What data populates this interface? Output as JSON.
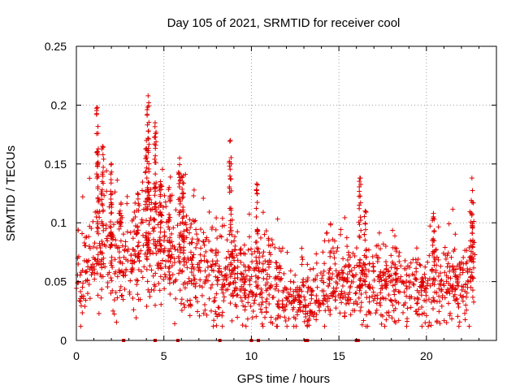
{
  "chart_data": {
    "type": "scatter",
    "title": "Day 105 of 2021, SRMTID for receiver cool",
    "xlabel": "GPS time / hours",
    "ylabel": "SRMTID / TECUs",
    "xlim": [
      0,
      24
    ],
    "ylim": [
      0,
      0.25
    ],
    "x_ticks": [
      0,
      5,
      10,
      15,
      20
    ],
    "x_tick_labels": [
      "0",
      "5",
      "10",
      "15",
      "20"
    ],
    "y_ticks": [
      0,
      0.05,
      0.1,
      0.15,
      0.2,
      0.25
    ],
    "y_tick_labels": [
      "0",
      "0.05",
      "0.1",
      "0.15",
      "0.2",
      "0.25"
    ],
    "grid": true,
    "marker": "plus",
    "color": "#e00000",
    "series": [
      {
        "name": "SRMTID",
        "trend": [
          [
            0.0,
            0.062
          ],
          [
            0.5,
            0.055
          ],
          [
            1.0,
            0.07
          ],
          [
            1.3,
            0.075
          ],
          [
            1.8,
            0.075
          ],
          [
            2.3,
            0.068
          ],
          [
            2.8,
            0.06
          ],
          [
            3.3,
            0.07
          ],
          [
            3.8,
            0.075
          ],
          [
            4.3,
            0.08
          ],
          [
            4.8,
            0.085
          ],
          [
            5.3,
            0.07
          ],
          [
            5.8,
            0.065
          ],
          [
            6.3,
            0.065
          ],
          [
            6.8,
            0.06
          ],
          [
            7.3,
            0.062
          ],
          [
            7.8,
            0.058
          ],
          [
            8.3,
            0.055
          ],
          [
            8.8,
            0.06
          ],
          [
            9.3,
            0.05
          ],
          [
            9.8,
            0.048
          ],
          [
            10.3,
            0.05
          ],
          [
            10.8,
            0.055
          ],
          [
            11.3,
            0.05
          ],
          [
            11.8,
            0.04
          ],
          [
            12.3,
            0.035
          ],
          [
            12.8,
            0.032
          ],
          [
            13.3,
            0.035
          ],
          [
            13.8,
            0.04
          ],
          [
            14.3,
            0.045
          ],
          [
            14.8,
            0.048
          ],
          [
            15.3,
            0.05
          ],
          [
            15.8,
            0.045
          ],
          [
            16.3,
            0.05
          ],
          [
            16.8,
            0.048
          ],
          [
            17.3,
            0.05
          ],
          [
            17.8,
            0.05
          ],
          [
            18.3,
            0.048
          ],
          [
            18.8,
            0.045
          ],
          [
            19.3,
            0.042
          ],
          [
            19.8,
            0.04
          ],
          [
            20.3,
            0.05
          ],
          [
            20.8,
            0.05
          ],
          [
            21.3,
            0.048
          ],
          [
            21.8,
            0.045
          ],
          [
            22.3,
            0.05
          ],
          [
            22.8,
            0.07
          ]
        ],
        "spikes": [
          {
            "x": 1.2,
            "min": 0.05,
            "max": 0.198
          },
          {
            "x": 1.5,
            "min": 0.06,
            "max": 0.165
          },
          {
            "x": 2.0,
            "min": 0.06,
            "max": 0.15
          },
          {
            "x": 2.5,
            "min": 0.05,
            "max": 0.11
          },
          {
            "x": 3.5,
            "min": 0.06,
            "max": 0.125
          },
          {
            "x": 4.0,
            "min": 0.06,
            "max": 0.17
          },
          {
            "x": 4.1,
            "min": 0.07,
            "max": 0.208
          },
          {
            "x": 4.5,
            "min": 0.07,
            "max": 0.185
          },
          {
            "x": 4.8,
            "min": 0.06,
            "max": 0.135
          },
          {
            "x": 5.3,
            "min": 0.05,
            "max": 0.13
          },
          {
            "x": 5.9,
            "min": 0.05,
            "max": 0.155
          },
          {
            "x": 6.1,
            "min": 0.05,
            "max": 0.14
          },
          {
            "x": 8.8,
            "min": 0.05,
            "max": 0.17
          },
          {
            "x": 10.3,
            "min": 0.04,
            "max": 0.133
          },
          {
            "x": 16.2,
            "min": 0.04,
            "max": 0.138
          },
          {
            "x": 16.5,
            "min": 0.04,
            "max": 0.11
          },
          {
            "x": 20.4,
            "min": 0.04,
            "max": 0.108
          },
          {
            "x": 22.6,
            "min": 0.05,
            "max": 0.138
          }
        ],
        "gaps_at_zero": [
          2.7,
          4.5,
          5.8,
          8.2,
          10.0,
          10.4,
          13.1,
          13.2,
          16.0,
          16.1
        ]
      }
    ]
  }
}
